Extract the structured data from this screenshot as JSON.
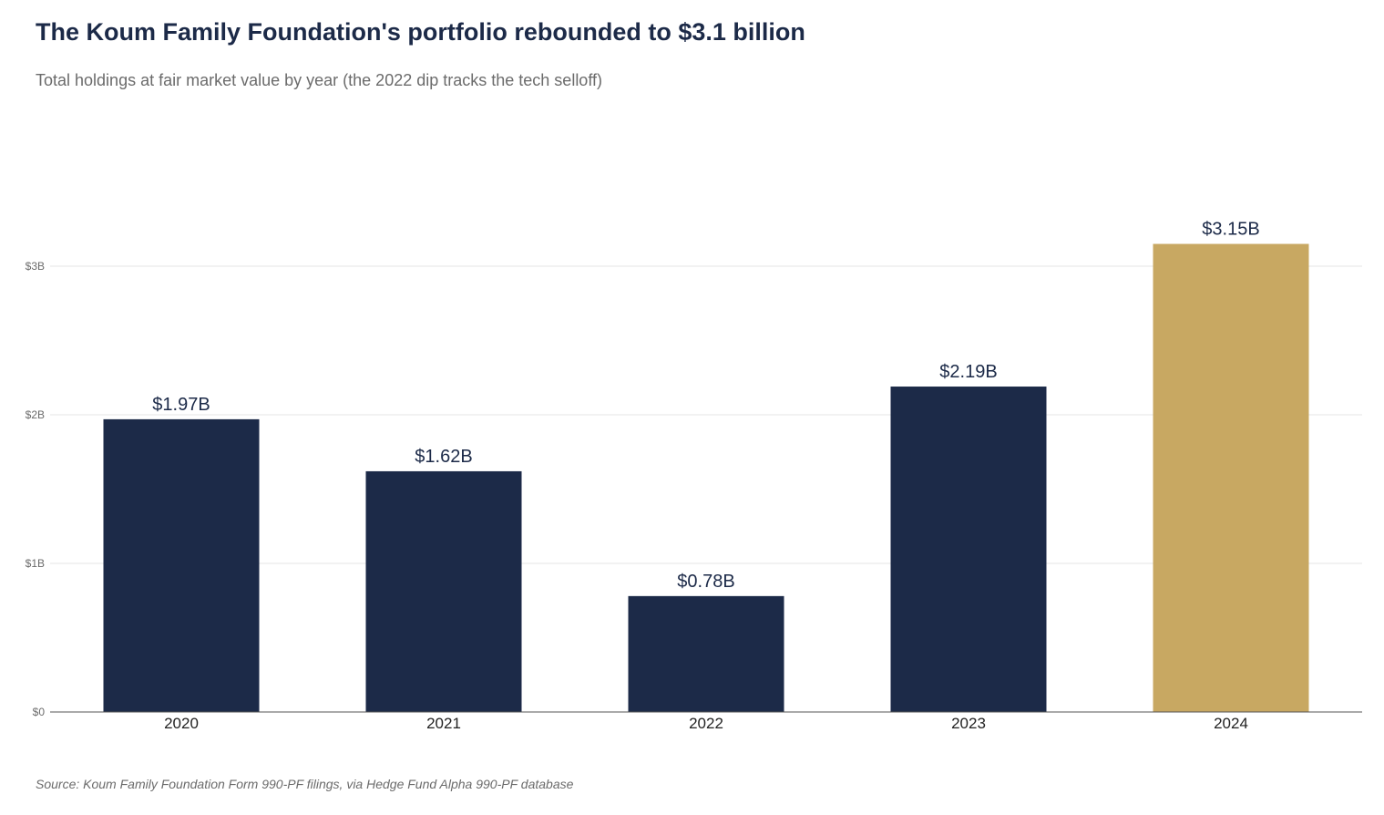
{
  "title": "The Koum Family Foundation's portfolio rebounded to $3.1 billion",
  "subtitle": "Total holdings at fair market value by year (the 2022 dip tracks the tech selloff)",
  "source": "Source: Koum Family Foundation Form 990-PF filings, via Hedge Fund Alpha 990-PF database",
  "colors": {
    "bar": "#1c2a48",
    "highlight": "#c8a862",
    "title": "#1c2a48",
    "muted_text": "#6b6b6b",
    "grid": "#e6e6e6",
    "axis": "#555555"
  },
  "chart_data": {
    "type": "bar",
    "categories": [
      "2020",
      "2021",
      "2022",
      "2023",
      "2024"
    ],
    "values": [
      1.97,
      1.62,
      0.78,
      2.19,
      3.15
    ],
    "value_labels": [
      "$1.97B",
      "$1.62B",
      "$0.78B",
      "$2.19B",
      "$3.15B"
    ],
    "highlight_category": "2024",
    "y_ticks": [
      0,
      1,
      2,
      3
    ],
    "y_tick_labels": [
      "$0",
      "$1B",
      "$2B",
      "$3B"
    ],
    "ylim": [
      0,
      3.0
    ],
    "xlabel": "",
    "ylabel": "",
    "grid": "horizontal",
    "legend": "none"
  }
}
